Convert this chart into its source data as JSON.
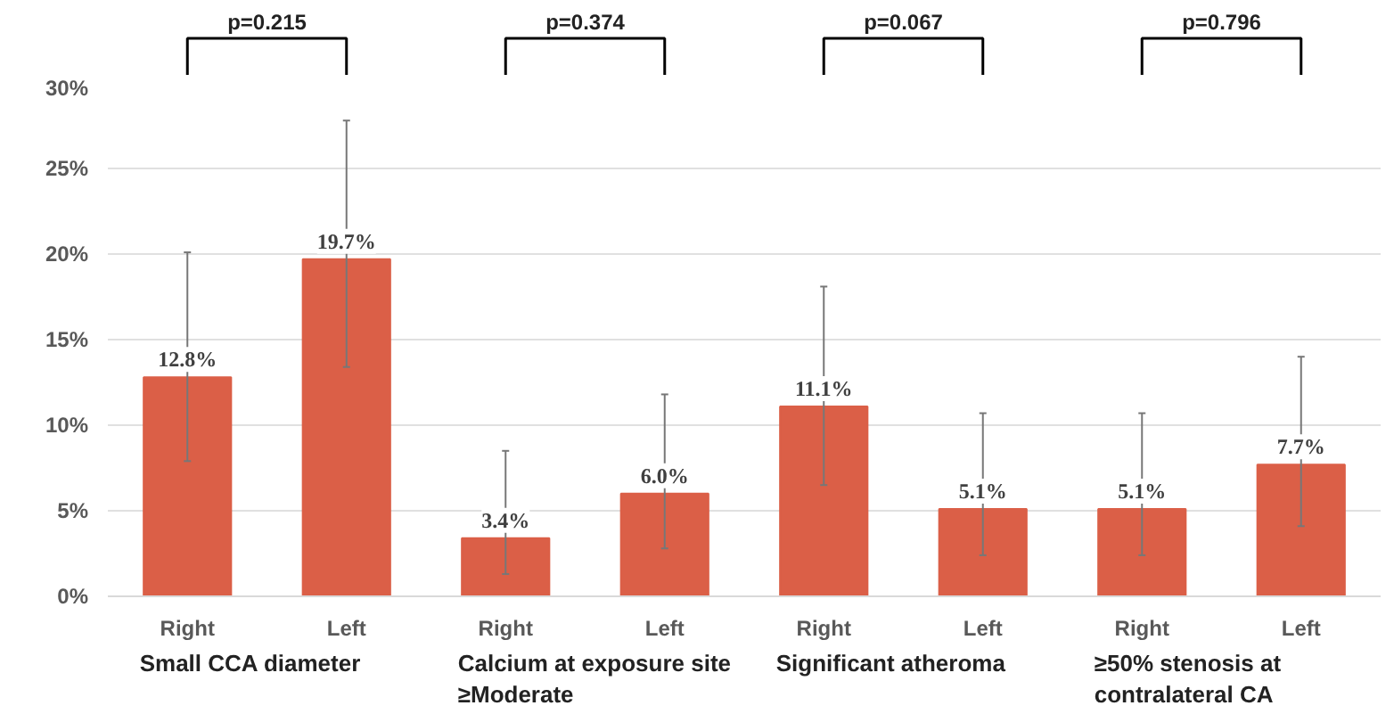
{
  "chart_data": {
    "type": "bar",
    "categories": [
      "Right",
      "Left",
      "Right",
      "Left",
      "Right",
      "Left",
      "Right",
      "Left"
    ],
    "values": [
      12.8,
      19.7,
      3.4,
      6.0,
      11.1,
      5.1,
      5.1,
      7.7
    ],
    "color": "#db5f47",
    "errors": [
      [
        7.9,
        20.1
      ],
      [
        13.4,
        27.8
      ],
      [
        1.3,
        8.5
      ],
      [
        2.8,
        11.8
      ],
      [
        6.5,
        18.1
      ],
      [
        2.4,
        10.7
      ],
      [
        2.4,
        10.7
      ],
      [
        4.1,
        14.0
      ]
    ],
    "value_labels": [
      "12.8%",
      "19.7%",
      "3.4%",
      "6.0%",
      "11.1%",
      "5.1%",
      "5.1%",
      "7.7%"
    ],
    "ylim": [
      0,
      30
    ],
    "yticks": [
      {
        "value": 0,
        "label": "0%"
      },
      {
        "value": 5,
        "label": "5%"
      },
      {
        "value": 10,
        "label": "10%"
      },
      {
        "value": 15,
        "label": "15%"
      },
      {
        "value": 20,
        "label": "20%"
      },
      {
        "value": 25,
        "label": "25%"
      },
      {
        "value": 30,
        "label": "30%"
      }
    ],
    "grid": "y",
    "annotations": [
      "p=0.215",
      "p=0.374",
      "p=0.067",
      "p=0.796",
      "Small CCA diameter",
      "Calcium at exposure site\n≥Moderate",
      "Significant atheroma",
      "≥50% stenosis at\ncontralateral CA"
    ]
  }
}
